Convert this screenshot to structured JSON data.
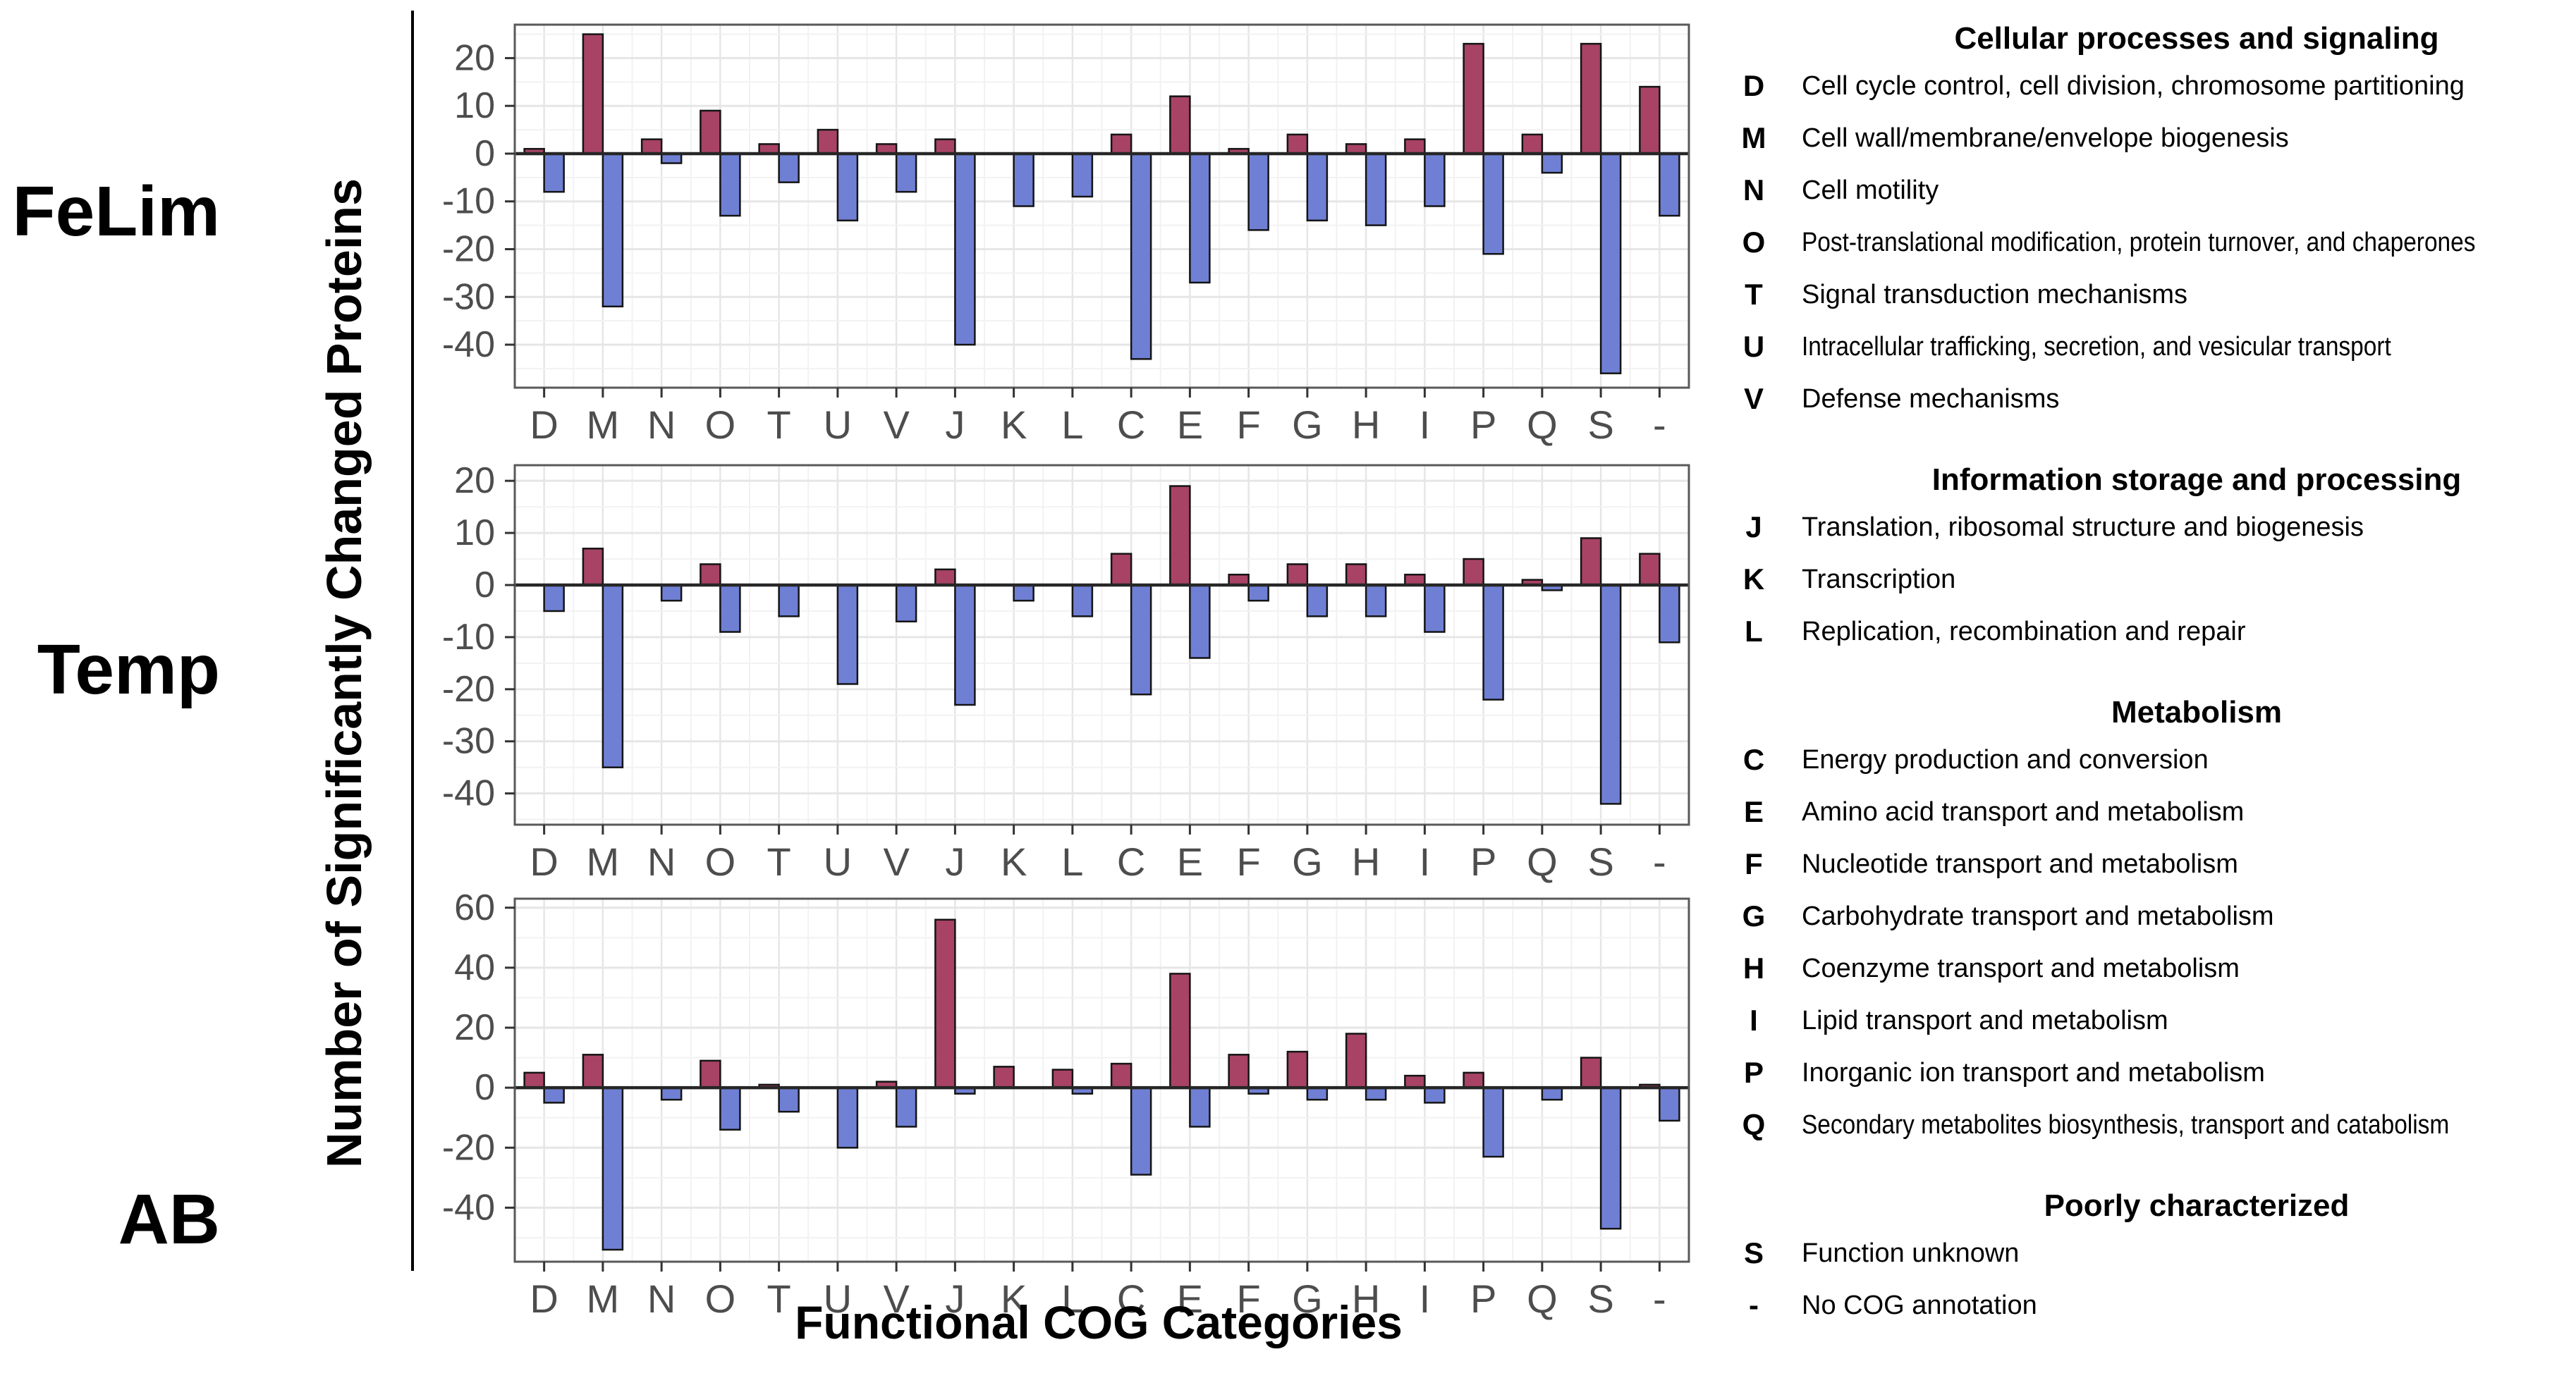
{
  "figure": {
    "y_axis_title": "Number of Significantly Changed Proteins",
    "x_axis_title": "Functional COG Categories"
  },
  "colors": {
    "increased_bar": "#A84365",
    "decreased_bar": "#6F80D4",
    "bar_outline": "#141414",
    "grid_major": "#E6E6E6",
    "grid_minor": "#F2F2F2",
    "panel_border": "#595959",
    "zero_line": "#262626",
    "tick_text": "#4D4D4D"
  },
  "chart_data": {
    "type": "bar",
    "orientation": "vertical",
    "grid": true,
    "legend_position": "none",
    "xlabel": "Functional COG Categories",
    "ylabel": "Number of Significantly Changed Proteins",
    "categories": [
      "D",
      "M",
      "N",
      "O",
      "T",
      "U",
      "V",
      "J",
      "K",
      "L",
      "C",
      "E",
      "F",
      "G",
      "H",
      "I",
      "P",
      "Q",
      "S",
      "-"
    ],
    "panels": [
      {
        "label": "FeLim",
        "ylim": [
          -49,
          27
        ],
        "yticks": [
          20,
          10,
          0,
          -10,
          -20,
          -30,
          -40
        ],
        "minor_step": 5,
        "major_step": 10,
        "series": [
          {
            "name": "increased",
            "values": [
              1,
              25,
              3,
              9,
              2,
              5,
              2,
              3,
              0,
              0,
              4,
              12,
              1,
              4,
              2,
              3,
              23,
              4,
              23,
              14
            ]
          },
          {
            "name": "decreased",
            "values": [
              -8,
              -32,
              -2,
              -13,
              -6,
              -14,
              -8,
              -40,
              -11,
              -9,
              -43,
              -27,
              -16,
              -14,
              -15,
              -11,
              -21,
              -4,
              -46,
              -13
            ]
          }
        ]
      },
      {
        "label": "Temp",
        "ylim": [
          -46,
          23
        ],
        "yticks": [
          20,
          10,
          0,
          -10,
          -20,
          -30,
          -40
        ],
        "minor_step": 5,
        "major_step": 10,
        "series": [
          {
            "name": "increased",
            "values": [
              0,
              7,
              0,
              4,
              0,
              0,
              0,
              3,
              0,
              0,
              6,
              19,
              2,
              4,
              4,
              2,
              5,
              1,
              9,
              6
            ]
          },
          {
            "name": "decreased",
            "values": [
              -5,
              -35,
              -3,
              -9,
              -6,
              -19,
              -7,
              -23,
              -3,
              -6,
              -21,
              -14,
              -3,
              -6,
              -6,
              -9,
              -22,
              -1,
              -42,
              -11
            ]
          }
        ]
      },
      {
        "label": "AB",
        "ylim": [
          -58,
          63
        ],
        "yticks": [
          60,
          40,
          20,
          0,
          -20,
          -40
        ],
        "minor_step": 10,
        "major_step": 20,
        "series": [
          {
            "name": "increased",
            "values": [
              5,
              11,
              0,
              9,
              1,
              0,
              2,
              56,
              7,
              6,
              8,
              38,
              11,
              12,
              18,
              4,
              5,
              0,
              10,
              1
            ]
          },
          {
            "name": "decreased",
            "values": [
              -5,
              -54,
              -4,
              -14,
              -8,
              -20,
              -13,
              -2,
              0,
              -2,
              -29,
              -13,
              -2,
              -4,
              -4,
              -5,
              -23,
              -4,
              -47,
              -11
            ]
          }
        ]
      }
    ]
  },
  "legend": {
    "sections": [
      {
        "title": "Cellular processes and signaling",
        "entries": [
          {
            "code": "D",
            "desc": "Cell cycle control, cell division, chromosome partitioning"
          },
          {
            "code": "M",
            "desc": "Cell wall/membrane/envelope biogenesis"
          },
          {
            "code": "N",
            "desc": "Cell motility"
          },
          {
            "code": "O",
            "desc": "Post-translational modification, protein turnover, and chaperones"
          },
          {
            "code": "T",
            "desc": "Signal transduction mechanisms"
          },
          {
            "code": "U",
            "desc": "Intracellular trafficking, secretion, and vesicular transport"
          },
          {
            "code": "V",
            "desc": "Defense mechanisms"
          }
        ]
      },
      {
        "title": "Information storage and processing",
        "entries": [
          {
            "code": "J",
            "desc": "Translation, ribosomal structure and biogenesis"
          },
          {
            "code": "K",
            "desc": "Transcription"
          },
          {
            "code": "L",
            "desc": "Replication, recombination and repair"
          }
        ]
      },
      {
        "title": "Metabolism",
        "entries": [
          {
            "code": "C",
            "desc": "Energy production and conversion"
          },
          {
            "code": "E",
            "desc": "Amino acid transport and metabolism"
          },
          {
            "code": "F",
            "desc": "Nucleotide transport and metabolism"
          },
          {
            "code": "G",
            "desc": "Carbohydrate transport and metabolism"
          },
          {
            "code": "H",
            "desc": "Coenzyme transport and metabolism"
          },
          {
            "code": "I",
            "desc": "Lipid transport and metabolism"
          },
          {
            "code": "P",
            "desc": "Inorganic ion transport and metabolism"
          },
          {
            "code": "Q",
            "desc": "Secondary metabolites biosynthesis, transport and catabolism"
          }
        ]
      },
      {
        "title": "Poorly characterized",
        "entries": [
          {
            "code": "S",
            "desc": "Function unknown"
          },
          {
            "code": "-",
            "desc": "No COG annotation"
          }
        ]
      }
    ]
  }
}
